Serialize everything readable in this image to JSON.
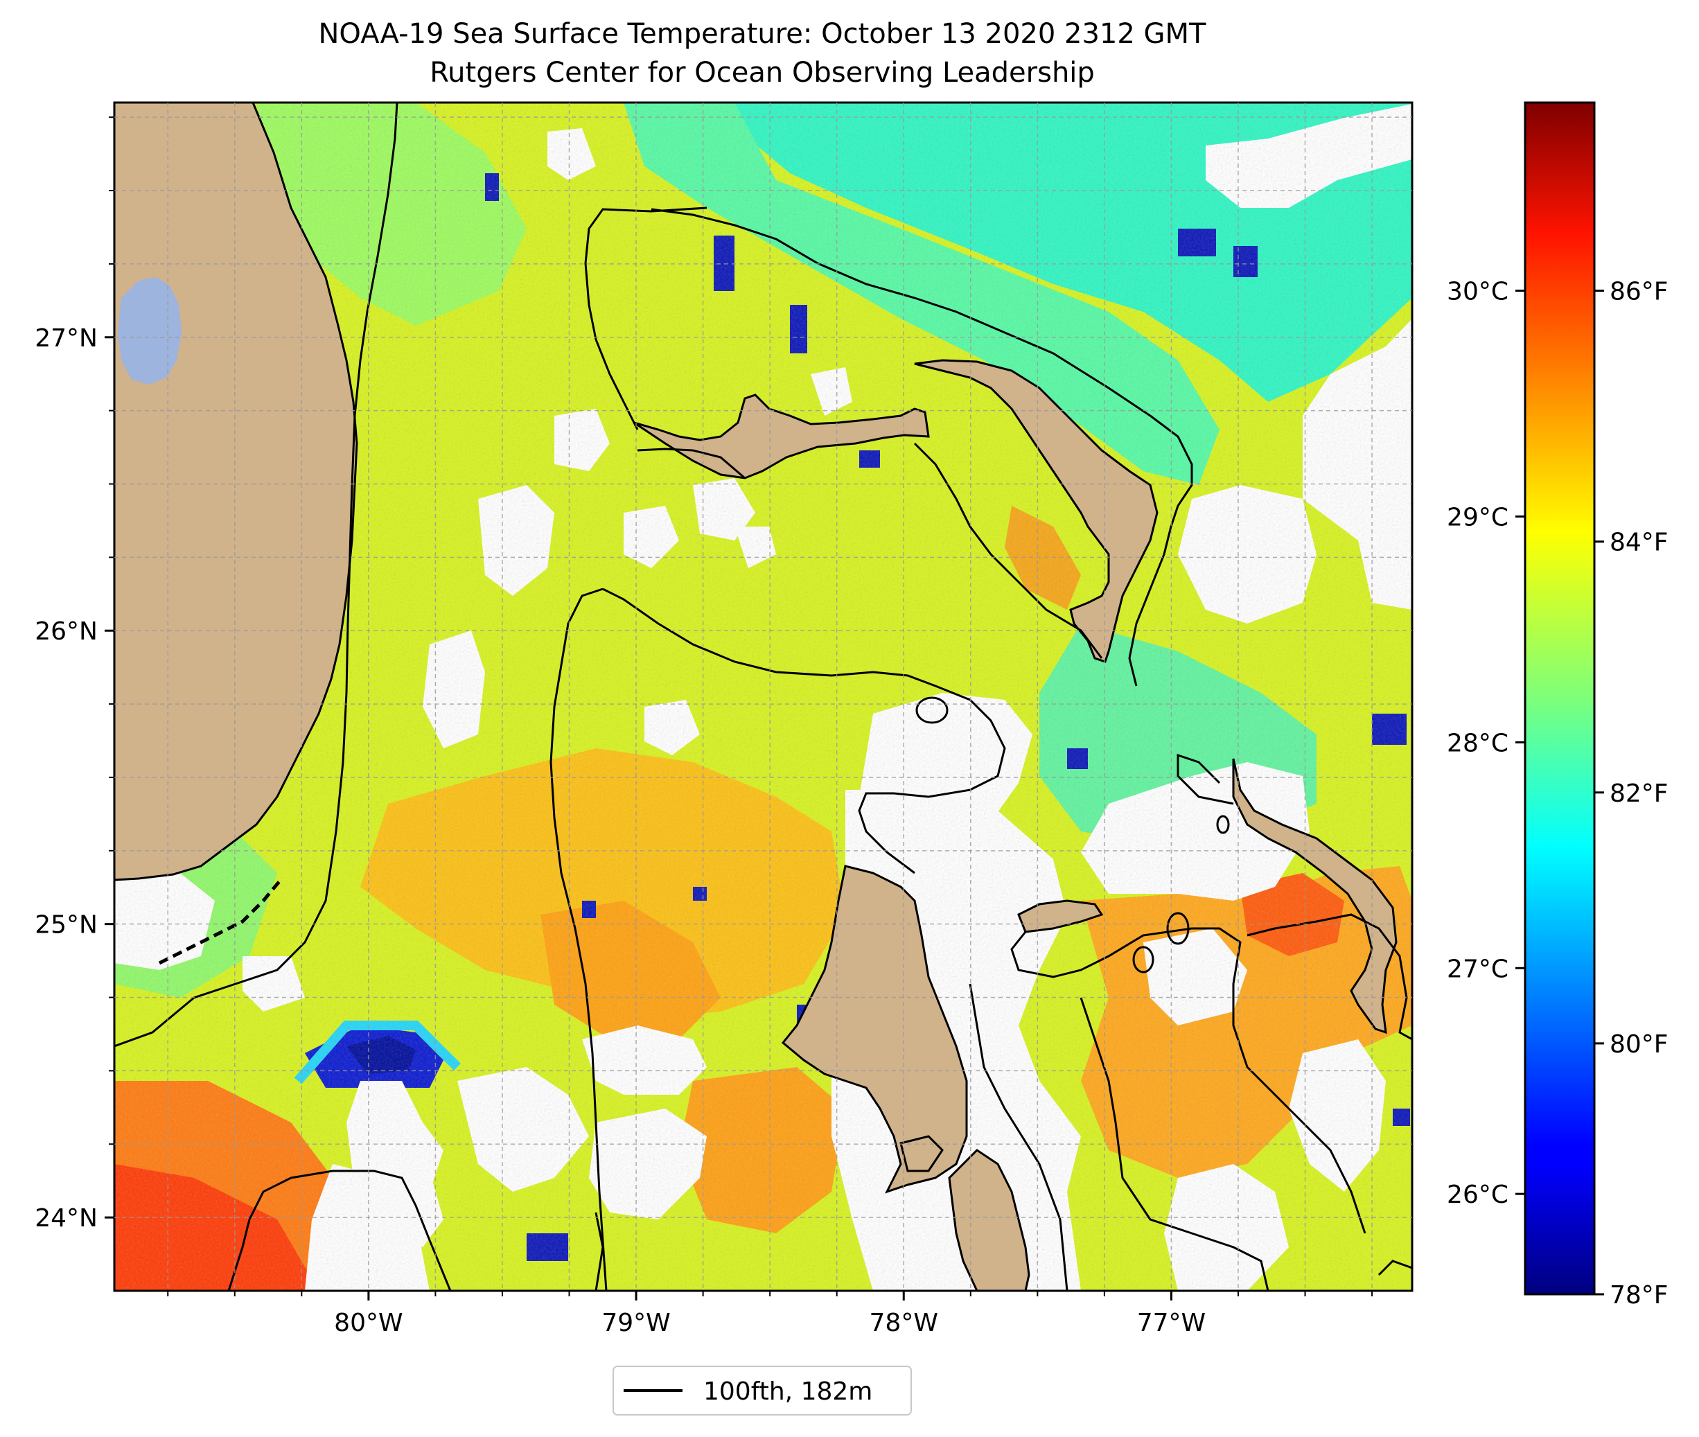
{
  "title": {
    "line1": "NOAA-19 Sea Surface Temperature: October 13 2020 2312 GMT",
    "line2": "Rutgers Center for Ocean Observing Leadership"
  },
  "map": {
    "lat_ticks": [
      {
        "value": 27,
        "label": "27°N"
      },
      {
        "value": 26,
        "label": "26°N"
      },
      {
        "value": 25,
        "label": "25°N"
      },
      {
        "value": 24,
        "label": "24°N"
      }
    ],
    "lon_ticks": [
      {
        "value": -80,
        "label": "80°W"
      },
      {
        "value": -79,
        "label": "79°W"
      },
      {
        "value": -78,
        "label": "78°W"
      },
      {
        "value": -77,
        "label": "77°W"
      }
    ],
    "lon_range": [
      -80.95,
      -76.1
    ],
    "lat_range": [
      23.75,
      27.8
    ],
    "colors": {
      "land": "#d0b28b",
      "lake": "#9db4df",
      "contour": "#000000"
    }
  },
  "colorbar": {
    "colormap": "jet",
    "celsius_ticks": [
      {
        "value": 30,
        "label": "30°C"
      },
      {
        "value": 29,
        "label": "29°C"
      },
      {
        "value": 28,
        "label": "28°C"
      },
      {
        "value": 27,
        "label": "27°C"
      },
      {
        "value": 26,
        "label": "26°C"
      }
    ],
    "fahrenheit_ticks": [
      {
        "value": 86,
        "label": "86°F"
      },
      {
        "value": 84,
        "label": "84°F"
      },
      {
        "value": 82,
        "label": "82°F"
      },
      {
        "value": 80,
        "label": "80°F"
      },
      {
        "value": 78,
        "label": "78°F"
      }
    ],
    "range_F": [
      78,
      87.5
    ]
  },
  "legend": {
    "label": "100fth, 182m"
  }
}
